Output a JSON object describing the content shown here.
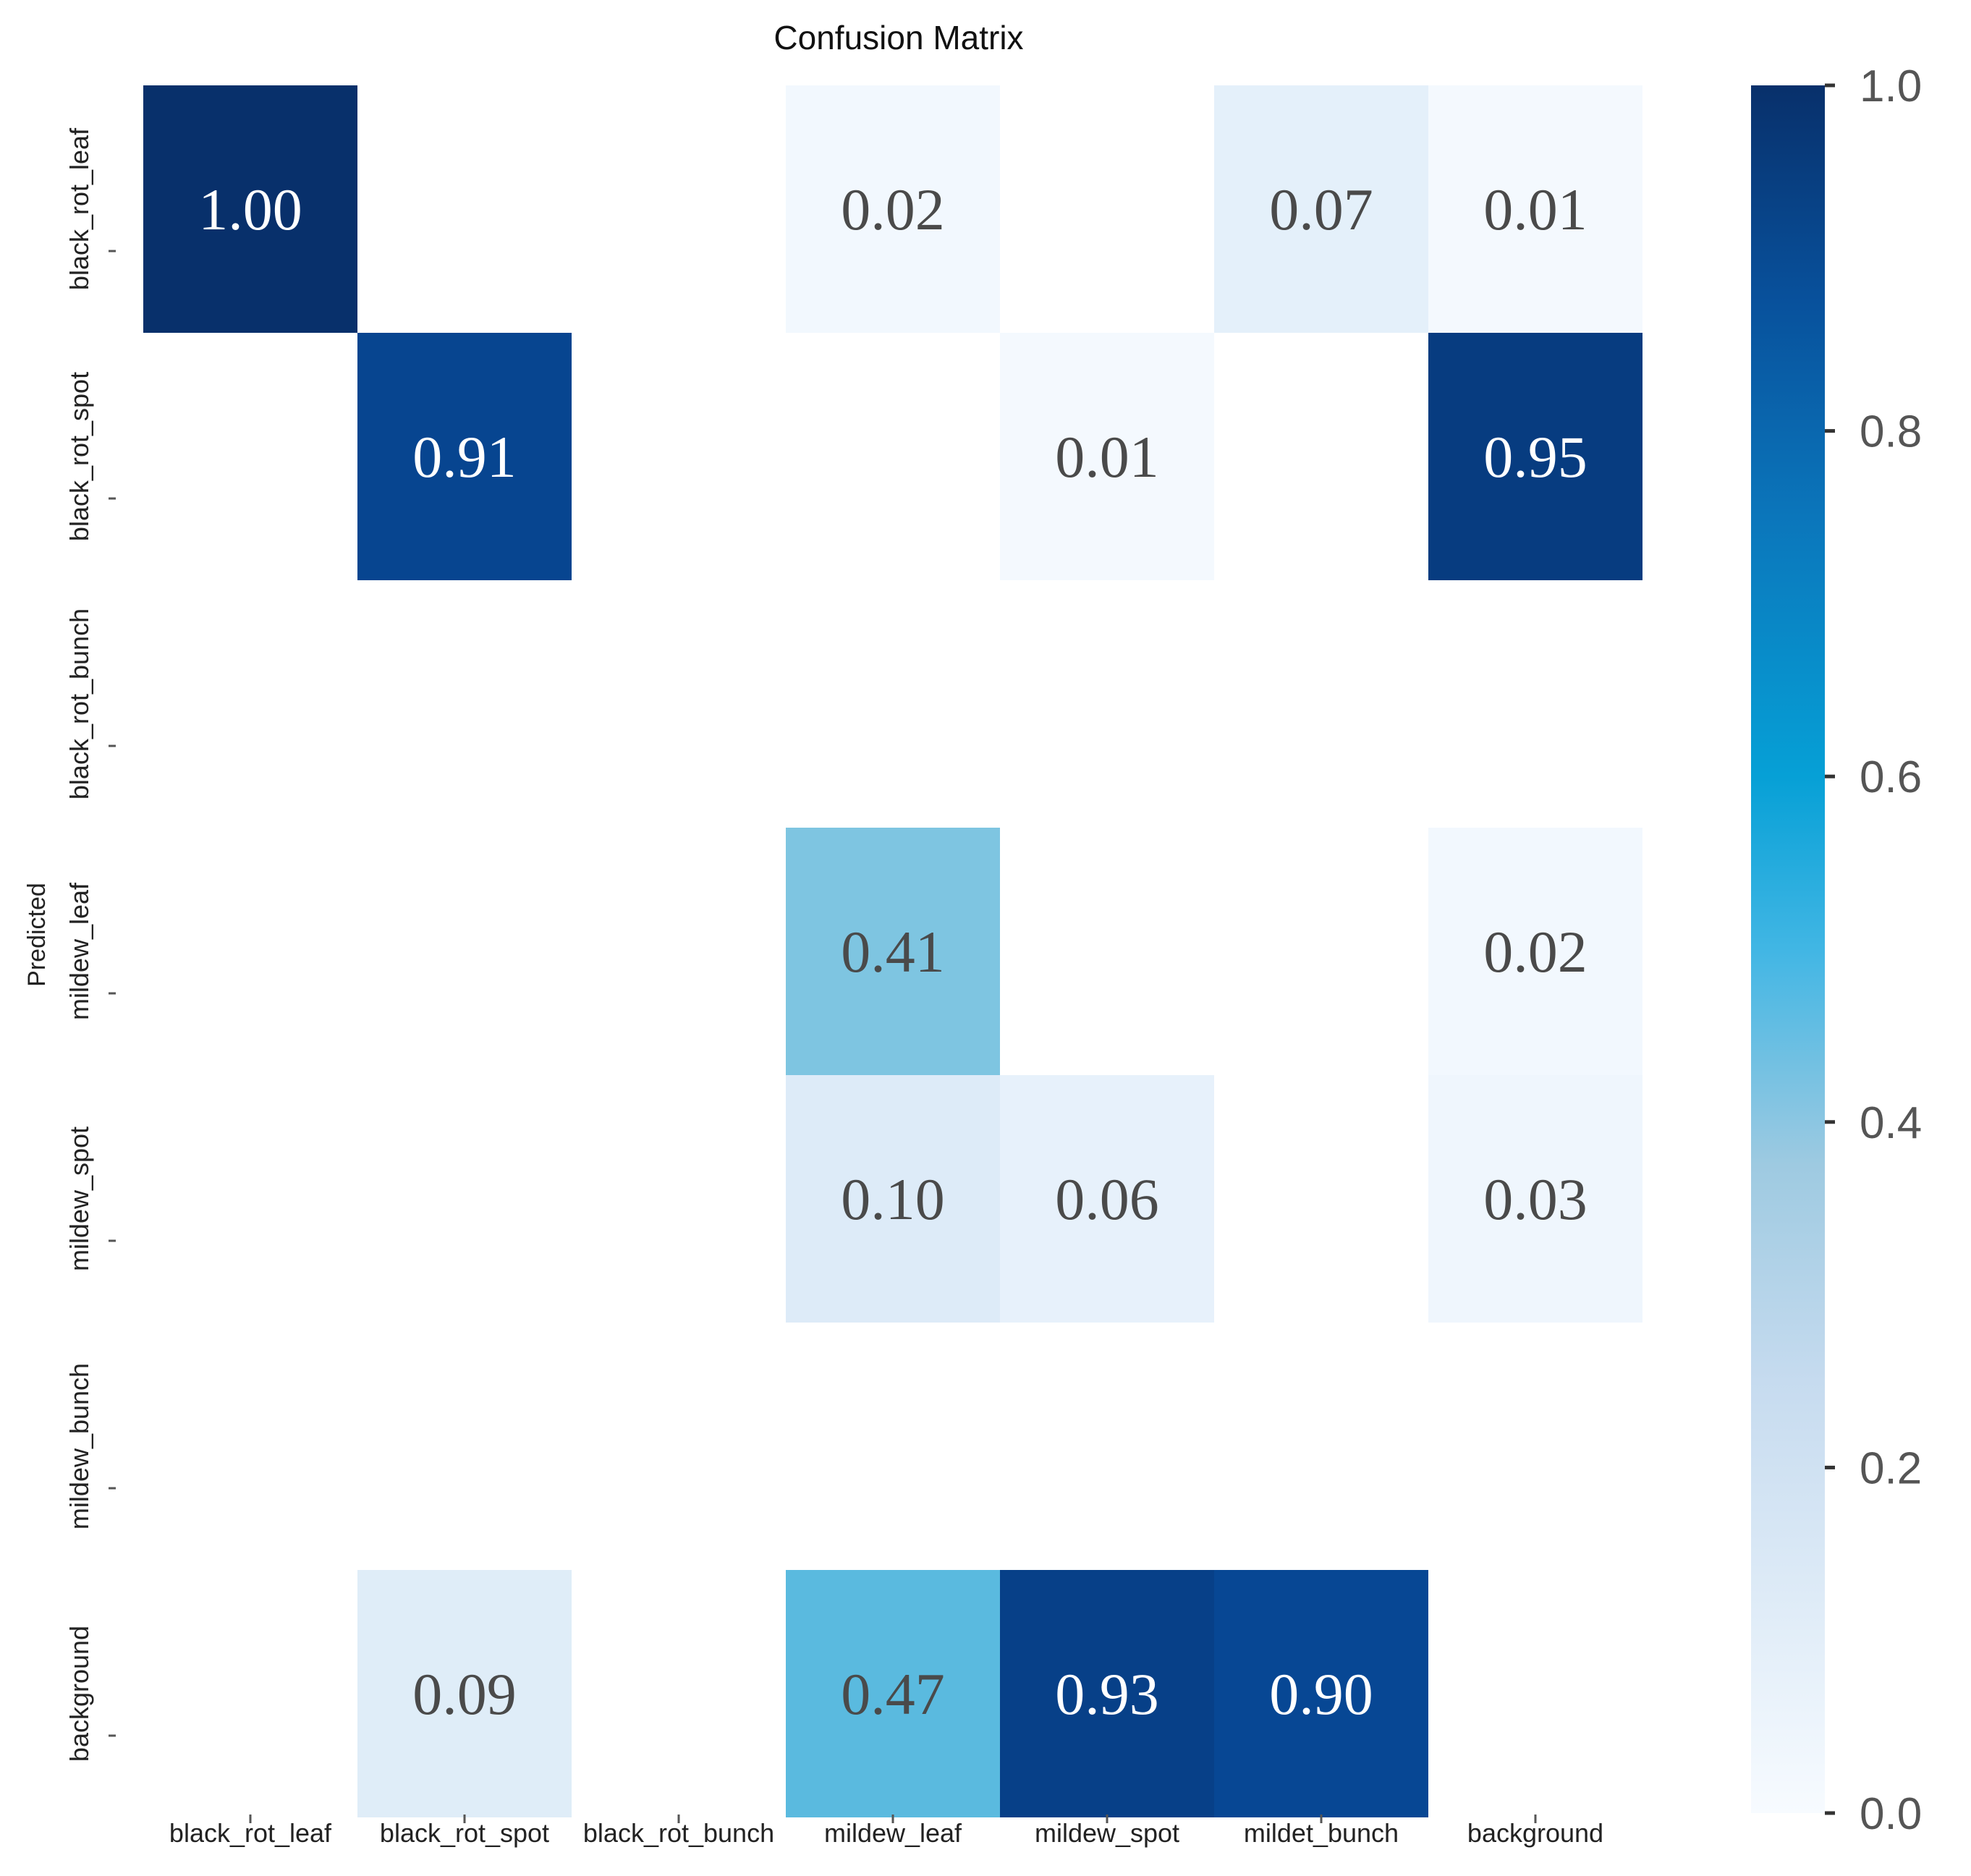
{
  "chart_data": {
    "type": "heatmap",
    "title": "Confusion Matrix",
    "ylabel": "Predicted",
    "xlabel": "",
    "row_labels": [
      "black_rot_leaf",
      "black_rot_spot",
      "black_rot_bunch",
      "mildew_leaf",
      "mildew_spot",
      "mildew_bunch",
      "background"
    ],
    "col_labels": [
      "black_rot_leaf",
      "black_rot_spot",
      "black_rot_bunch",
      "mildew_leaf",
      "mildew_spot",
      "mildet_bunch",
      "background"
    ],
    "values": [
      [
        1.0,
        null,
        null,
        0.02,
        null,
        0.07,
        0.01
      ],
      [
        null,
        0.91,
        null,
        null,
        0.01,
        null,
        0.95
      ],
      [
        null,
        null,
        null,
        null,
        null,
        null,
        null
      ],
      [
        null,
        null,
        null,
        0.41,
        null,
        null,
        0.02
      ],
      [
        null,
        null,
        null,
        0.1,
        0.06,
        null,
        0.03
      ],
      [
        null,
        null,
        null,
        null,
        null,
        null,
        null
      ],
      [
        null,
        0.09,
        null,
        0.47,
        0.93,
        0.9,
        null
      ]
    ],
    "value_format": "2 decimals",
    "colorbar": {
      "colormap": "Blues",
      "range": [
        0.0,
        1.0
      ],
      "ticks": [
        0.0,
        0.2,
        0.4,
        0.6,
        0.8,
        1.0
      ],
      "tick_labels": [
        "0.0",
        "0.2",
        "0.4",
        "0.6",
        "0.8",
        "1.0"
      ]
    },
    "colors": {
      "low": "#f5f9fe",
      "high": "#08306b",
      "light_text": "#ffffff",
      "dark_text": "#4a4a4a"
    }
  }
}
